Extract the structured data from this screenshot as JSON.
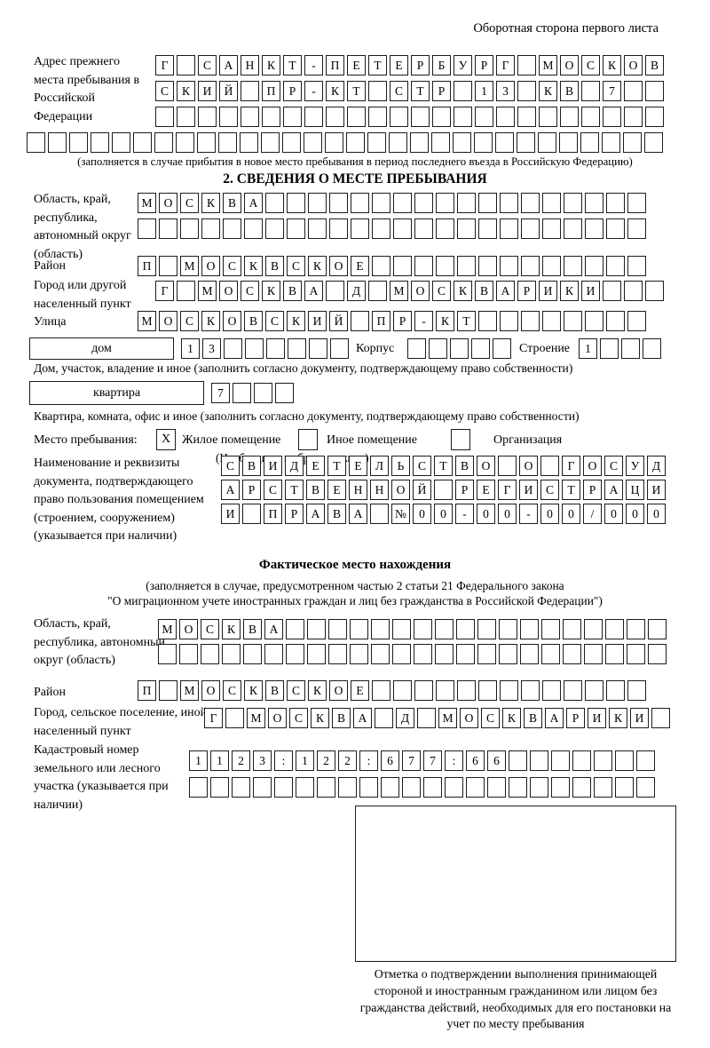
{
  "header": {
    "back_side_note": "Оборотная сторона первого листа"
  },
  "prev_address": {
    "label": "Адрес прежнего места пребывания в Российской Федерации",
    "rows": [
      [
        "Г",
        "",
        "С",
        "А",
        "Н",
        "К",
        "Т",
        "-",
        "П",
        "Е",
        "Т",
        "Е",
        "Р",
        "Б",
        "У",
        "Р",
        "Г",
        "",
        "М",
        "О",
        "С",
        "К",
        "О",
        "В"
      ],
      [
        "С",
        "К",
        "И",
        "Й",
        "",
        "П",
        "Р",
        "-",
        "К",
        "Т",
        "",
        "С",
        "Т",
        "Р",
        "",
        "1",
        "3",
        "",
        "К",
        "В",
        "",
        "7",
        "",
        ""
      ],
      [
        "",
        "",
        "",
        "",
        "",
        "",
        "",
        "",
        "",
        "",
        "",
        "",
        "",
        "",
        "",
        "",
        "",
        "",
        "",
        "",
        "",
        "",
        "",
        ""
      ],
      [
        "",
        "",
        "",
        "",
        "",
        "",
        "",
        "",
        "",
        "",
        "",
        "",
        "",
        "",
        "",
        "",
        "",
        "",
        "",
        "",
        "",
        "",
        "",
        "",
        "",
        "",
        "",
        "",
        "",
        ""
      ]
    ],
    "note": "(заполняется в случае прибытия в новое место пребывания в период последнего въезда в Российскую Федерацию)"
  },
  "section2": {
    "title": "2. СВЕДЕНИЯ О МЕСТЕ ПРЕБЫВАНИЯ",
    "oblast": {
      "label": "Область, край, республика, автономный округ (область)",
      "rows": [
        [
          "М",
          "О",
          "С",
          "К",
          "В",
          "А",
          "",
          "",
          "",
          "",
          "",
          "",
          "",
          "",
          "",
          "",
          "",
          "",
          "",
          "",
          "",
          "",
          "",
          ""
        ],
        [
          "",
          "",
          "",
          "",
          "",
          "",
          "",
          "",
          "",
          "",
          "",
          "",
          "",
          "",
          "",
          "",
          "",
          "",
          "",
          "",
          "",
          "",
          "",
          ""
        ]
      ]
    },
    "raion": {
      "label": "Район",
      "cells": [
        "П",
        "",
        "М",
        "О",
        "С",
        "К",
        "В",
        "С",
        "К",
        "О",
        "Е",
        "",
        "",
        "",
        "",
        "",
        "",
        "",
        "",
        "",
        "",
        "",
        "",
        ""
      ]
    },
    "gorod": {
      "label": "Город или другой населенный пункт",
      "cells": [
        "Г",
        "",
        "М",
        "О",
        "С",
        "К",
        "В",
        "А",
        "",
        "Д",
        "",
        "М",
        "О",
        "С",
        "К",
        "В",
        "А",
        "Р",
        "И",
        "К",
        "И",
        "",
        "",
        ""
      ]
    },
    "ulitsa": {
      "label": "Улица",
      "cells": [
        "М",
        "О",
        "С",
        "К",
        "О",
        "В",
        "С",
        "К",
        "И",
        "Й",
        "",
        "П",
        "Р",
        "-",
        "К",
        "Т",
        "",
        "",
        "",
        "",
        "",
        "",
        "",
        ""
      ]
    },
    "dom": {
      "box_label": "дом",
      "cells": [
        "1",
        "3",
        "",
        "",
        "",
        "",
        "",
        ""
      ],
      "korpus_label": "Корпус",
      "korpus_cells": [
        "",
        "",
        "",
        "",
        ""
      ],
      "stroenie_label": "Строение",
      "stroenie_cells": [
        "1",
        "",
        "",
        ""
      ],
      "caption": "Дом, участок, владение и иное (заполнить согласно документу, подтверждающему право собственности)"
    },
    "kvartira": {
      "box_label": "квартира",
      "cells": [
        "7",
        "",
        "",
        ""
      ],
      "caption": "Квартира, комната, офис и иное (заполнить согласно документу, подтверждающему право собственности)"
    },
    "mesto": {
      "label": "Место пребывания:",
      "opt1_checked": "X",
      "opt1_label": "Жилое помещение",
      "opt2_checked": "",
      "opt2_label": "Иное помещение",
      "opt3_checked": "",
      "opt3_label": "Организация",
      "note": "(Необходимо выбрать нужное)"
    },
    "document": {
      "label": "Наименование и реквизиты документа, подтверждающего право пользования помещением (строением, сооружением) (указывается при наличии)",
      "rows": [
        [
          "С",
          "В",
          "И",
          "Д",
          "Е",
          "Т",
          "Е",
          "Л",
          "Ь",
          "С",
          "Т",
          "В",
          "О",
          "",
          "О",
          "",
          "Г",
          "О",
          "С",
          "У",
          "Д"
        ],
        [
          "А",
          "Р",
          "С",
          "Т",
          "В",
          "Е",
          "Н",
          "Н",
          "О",
          "Й",
          "",
          "Р",
          "Е",
          "Г",
          "И",
          "С",
          "Т",
          "Р",
          "А",
          "Ц",
          "И"
        ],
        [
          "И",
          "",
          "П",
          "Р",
          "А",
          "В",
          "А",
          "",
          "№",
          "0",
          "0",
          "-",
          "0",
          "0",
          "-",
          "0",
          "0",
          "/",
          "0",
          "0",
          "0"
        ]
      ]
    }
  },
  "fact_location": {
    "title": "Фактическое место нахождения",
    "note_line1": "(заполняется в случае, предусмотренном частью 2 статьи 21 Федерального закона",
    "note_line2": "\"О миграционном учете иностранных граждан и лиц без гражданства в Российской Федерации\")",
    "oblast": {
      "label": "Область, край, республика, автономный округ (область)",
      "rows": [
        [
          "М",
          "О",
          "С",
          "К",
          "В",
          "А",
          "",
          "",
          "",
          "",
          "",
          "",
          "",
          "",
          "",
          "",
          "",
          "",
          "",
          "",
          "",
          "",
          "",
          ""
        ],
        [
          "",
          "",
          "",
          "",
          "",
          "",
          "",
          "",
          "",
          "",
          "",
          "",
          "",
          "",
          "",
          "",
          "",
          "",
          "",
          "",
          "",
          "",
          "",
          ""
        ]
      ]
    },
    "raion": {
      "label": "Район",
      "cells": [
        "П",
        "",
        "М",
        "О",
        "С",
        "К",
        "В",
        "С",
        "К",
        "О",
        "Е",
        "",
        "",
        "",
        "",
        "",
        "",
        "",
        "",
        "",
        "",
        "",
        "",
        ""
      ]
    },
    "gorod": {
      "label": "Город, сельское поселение, иной населенный пункт",
      "cells": [
        "Г",
        "",
        "М",
        "О",
        "С",
        "К",
        "В",
        "А",
        "",
        "Д",
        "",
        "М",
        "О",
        "С",
        "К",
        "В",
        "А",
        "Р",
        "И",
        "К",
        "И",
        ""
      ]
    },
    "kadastr": {
      "label": "Кадастровый номер земельного или лесного участка (указывается при наличии)",
      "rows": [
        [
          "1",
          "1",
          "2",
          "3",
          ":",
          "1",
          "2",
          "2",
          ":",
          "6",
          "7",
          "7",
          ":",
          "6",
          "6",
          "",
          "",
          "",
          "",
          "",
          "",
          ""
        ],
        [
          "",
          "",
          "",
          "",
          "",
          "",
          "",
          "",
          "",
          "",
          "",
          "",
          "",
          "",
          "",
          "",
          "",
          "",
          "",
          "",
          "",
          ""
        ]
      ]
    },
    "stamp_caption": "Отметка о подтверждении выполнения принимающей стороной и иностранным гражданином или лицом без гражданства действий, необходимых для его постановки на учет по месту пребывания"
  }
}
